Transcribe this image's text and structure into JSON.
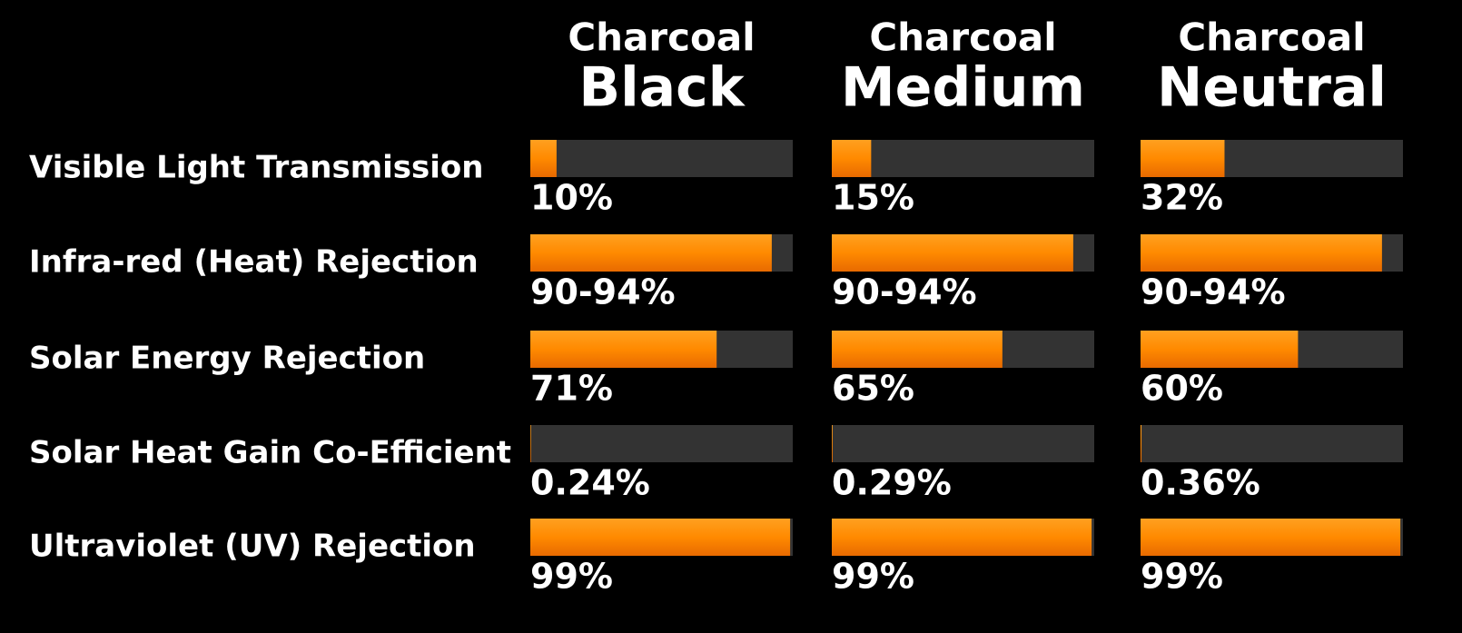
{
  "chart_data": {
    "type": "hbar-panels",
    "categories": [
      "Visible Light Transmission",
      "Infra-red (Heat) Rejection",
      "Solar Energy Rejection",
      "Solar Heat Gain Co-Efficient",
      "Ultraviolet (UV) Rejection"
    ],
    "xlim": [
      0,
      100
    ],
    "series": [
      {
        "name": [
          "Charcoal",
          "Black"
        ],
        "color": "#ff8a00",
        "values": [
          10,
          92,
          71,
          0.24,
          99
        ],
        "value_labels": [
          "10%",
          "90-94%",
          "71%",
          "0.24%",
          "99%"
        ]
      },
      {
        "name": [
          "Charcoal",
          "Medium"
        ],
        "color": "#ff8a00",
        "values": [
          15,
          92,
          65,
          0.29,
          99
        ],
        "value_labels": [
          "15%",
          "90-94%",
          "65%",
          "0.29%",
          "99%"
        ]
      },
      {
        "name": [
          "Charcoal",
          "Neutral"
        ],
        "color": "#ff8a00",
        "values": [
          32,
          92,
          60,
          0.36,
          99
        ],
        "value_labels": [
          "32%",
          "90-94%",
          "60%",
          "0.36%",
          "99%"
        ]
      }
    ]
  }
}
